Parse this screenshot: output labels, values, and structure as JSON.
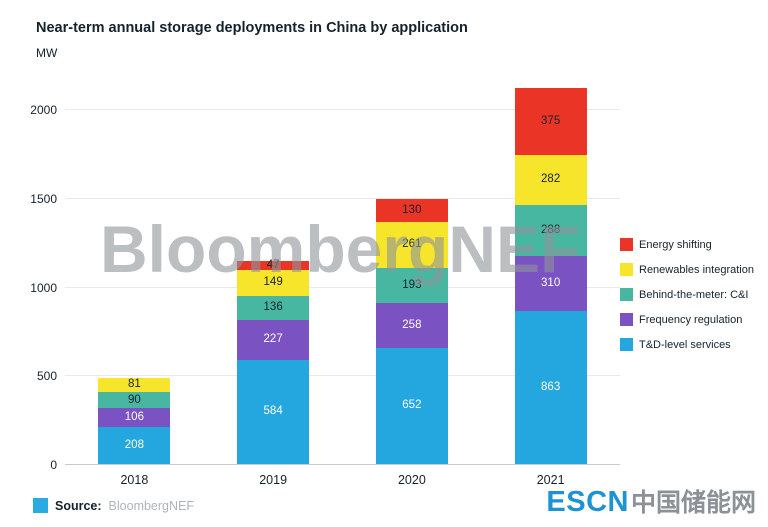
{
  "title": "Near-term annual storage deployments in China by application",
  "unit_label": "MW",
  "watermark": "BloombergNEF",
  "source": {
    "prefix": "Source:",
    "name": "BloombergNEF"
  },
  "logo": {
    "latin": "ESCN",
    "cjk": "中国储能网"
  },
  "colors": {
    "td_services": "#24a7df",
    "frequency_regulation": "#7b52c1",
    "behind_meter": "#47b7a2",
    "renewables_integration": "#f7e52b",
    "energy_shifting": "#ea3526",
    "source_box": "#29abe2",
    "logo_blue": "#1d93d2"
  },
  "chart_data": {
    "type": "bar",
    "stacked": true,
    "title": "Near-term annual storage deployments in China by application",
    "xlabel": "",
    "ylabel": "MW",
    "ylim": [
      0,
      2000
    ],
    "yticks": [
      0,
      500,
      1000,
      1500,
      2000
    ],
    "grid": true,
    "legend_position": "right",
    "categories": [
      "2018",
      "2019",
      "2020",
      "2021"
    ],
    "series": [
      {
        "name": "T&D-level services",
        "color": "#24a7df",
        "label_color": "#ffffff",
        "values": [
          208,
          584,
          652,
          863
        ]
      },
      {
        "name": "Frequency regulation",
        "color": "#7b52c1",
        "label_color": "#ffffff",
        "values": [
          106,
          227,
          258,
          310
        ]
      },
      {
        "name": "Behind-the-meter: C&I",
        "color": "#47b7a2",
        "label_color": "#15222c",
        "values": [
          90,
          136,
          193,
          288
        ]
      },
      {
        "name": "Renewables integration",
        "color": "#f7e52b",
        "label_color": "#15222c",
        "values": [
          81,
          149,
          261,
          282
        ]
      },
      {
        "name": "Energy shifting",
        "color": "#ea3526",
        "label_color": "#15222c",
        "values": [
          null,
          47,
          130,
          375
        ]
      }
    ],
    "totals": [
      485,
      1143,
      1494,
      2118
    ]
  }
}
